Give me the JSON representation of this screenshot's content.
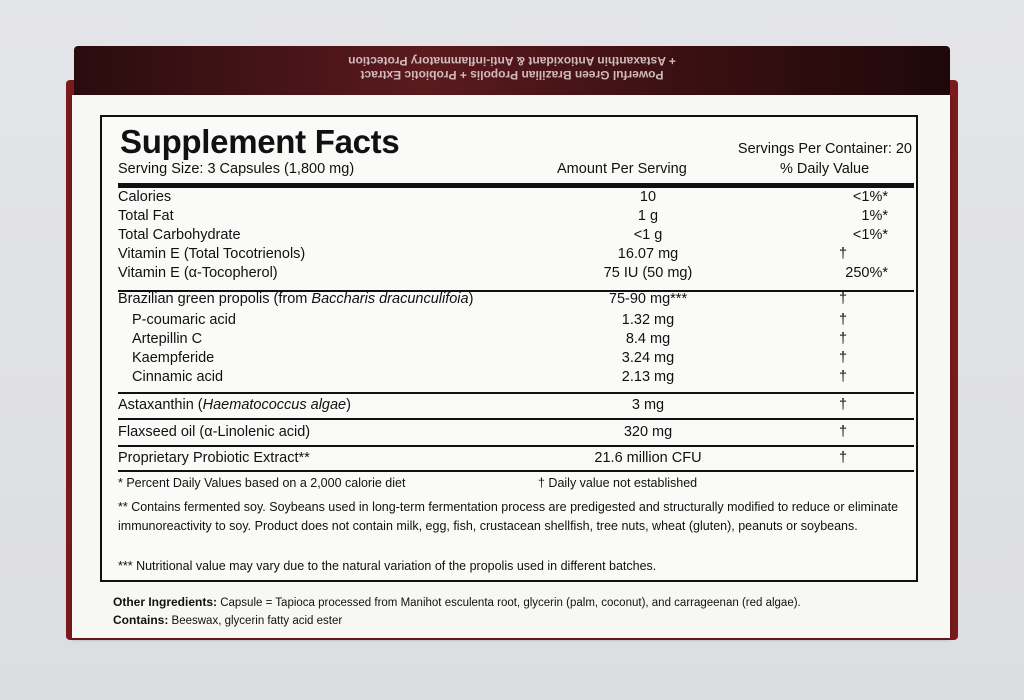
{
  "flap": {
    "line1": "Powerful Green Brazilian Propolis + Probiotic Extract",
    "line2": "+ Astaxanthin Antioxidant & Anti-inflammatory Protection"
  },
  "facts": {
    "title": "Supplement Facts",
    "servings_per_container": "Servings Per Container: 20",
    "serving_size": "Serving Size: 3 Capsules (1,800 mg)",
    "col_amount": "Amount Per Serving",
    "col_dv": "% Daily Value",
    "group1": [
      {
        "name": "Calories",
        "amount": "10",
        "dv": "<1%*"
      },
      {
        "name": "Total Fat",
        "amount": "1 g",
        "dv": "1%*"
      },
      {
        "name": "Total Carbohydrate",
        "amount": "<1 g",
        "dv": "<1%*"
      },
      {
        "name": "Vitamin E (Total Tocotrienols)",
        "amount": "16.07 mg",
        "dv": "†"
      },
      {
        "name": "Vitamin E (α-Tocopherol)",
        "amount": "75 IU (50 mg)",
        "dv": "250%*"
      }
    ],
    "propolis": {
      "name": "Brazilian green propolis (from ",
      "name_italic": "Baccharis dracunculifoia",
      "name_end": ")",
      "amount": "75-90 mg***",
      "dv": "†"
    },
    "group2": [
      {
        "name": "P-coumaric acid",
        "amount": "1.32 mg",
        "dv": "†"
      },
      {
        "name": "Artepillin C",
        "amount": "8.4 mg",
        "dv": "†"
      },
      {
        "name": "Kaempferide",
        "amount": "3.24 mg",
        "dv": "†"
      },
      {
        "name": "Cinnamic acid",
        "amount": "2.13 mg",
        "dv": "†"
      }
    ],
    "astaxanthin": {
      "name": "Astaxanthin (",
      "name_italic": "Haematococcus algae",
      "name_end": ")",
      "amount": "3 mg",
      "dv": "†"
    },
    "flaxseed": {
      "name": "Flaxseed oil (α-Linolenic acid)",
      "amount": "320 mg",
      "dv": "†"
    },
    "probiotic": {
      "name": "Proprietary Probiotic Extract**",
      "amount": "21.6 million CFU",
      "dv": "†"
    },
    "footnotes": {
      "percent_dv": "*  Percent Daily Values based on a 2,000 calorie diet",
      "dagger": "† Daily value not established",
      "soy": "** Contains fermented soy. Soybeans used in long-term fermentation process are predigested and structurally modified to reduce or eliminate immunoreactivity to soy.  Product does not contain milk, egg, fish, crustacean shellfish, tree nuts, wheat (gluten), peanuts or soybeans.",
      "variation": "*** Nutritional value may vary due to the natural variation of the propolis used in different batches."
    }
  },
  "other_ingredients": {
    "label": "Other Ingredients:",
    "text": " Capsule = Tapioca processed from Manihot esculenta root, glycerin (palm, coconut), and carrageenan (red algae)."
  },
  "contains": {
    "label": "Contains:",
    "text": " Beeswax, glycerin fatty acid ester"
  }
}
